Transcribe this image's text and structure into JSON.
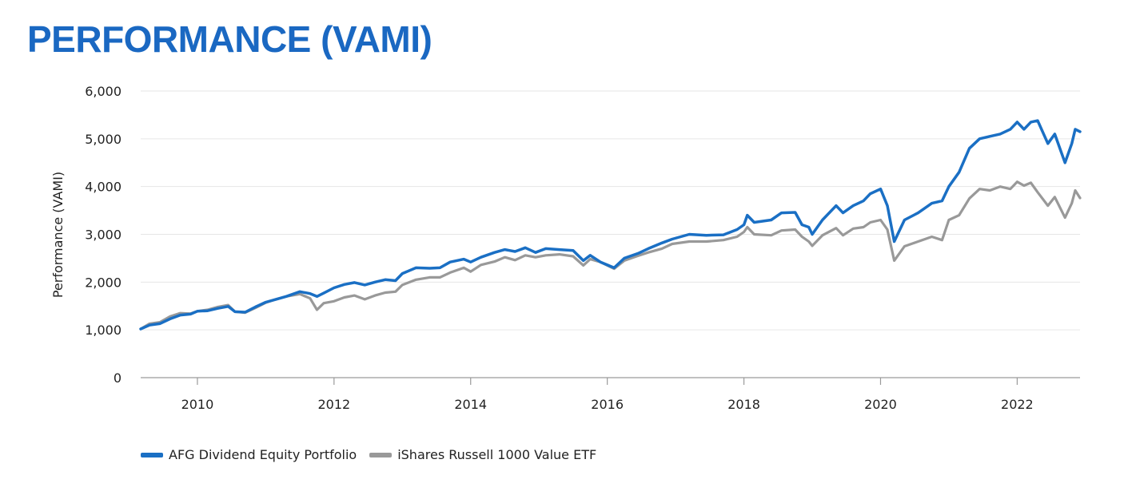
{
  "title": "PERFORMANCE (VAMI)",
  "colors": {
    "title": "#1a68c2",
    "grid": "#e6e6e6",
    "axis": "#9a9a9a"
  },
  "chart_data": {
    "type": "line",
    "ylabel": "Performance (VAMI)",
    "xlabel": "",
    "x_domain": [
      2009.17,
      2022.92
    ],
    "ylim": [
      0,
      6000
    ],
    "y_ticks": [
      "0",
      "1,000",
      "2,000",
      "3,000",
      "4,000",
      "5,000",
      "6,000"
    ],
    "x_ticks": [
      "2010",
      "2012",
      "2014",
      "2016",
      "2018",
      "2020",
      "2022"
    ],
    "grid": true,
    "legend_position": "bottom-left",
    "series": [
      {
        "name": "AFG Dividend Equity Portfolio",
        "color": "#1a6fc4",
        "points": [
          [
            2009.17,
            1020
          ],
          [
            2009.3,
            1100
          ],
          [
            2009.45,
            1130
          ],
          [
            2009.6,
            1230
          ],
          [
            2009.75,
            1310
          ],
          [
            2009.9,
            1330
          ],
          [
            2010.0,
            1390
          ],
          [
            2010.15,
            1400
          ],
          [
            2010.3,
            1450
          ],
          [
            2010.45,
            1490
          ],
          [
            2010.55,
            1380
          ],
          [
            2010.7,
            1370
          ],
          [
            2010.85,
            1480
          ],
          [
            2011.0,
            1580
          ],
          [
            2011.15,
            1640
          ],
          [
            2011.3,
            1700
          ],
          [
            2011.5,
            1800
          ],
          [
            2011.65,
            1760
          ],
          [
            2011.75,
            1700
          ],
          [
            2011.85,
            1770
          ],
          [
            2012.0,
            1880
          ],
          [
            2012.15,
            1950
          ],
          [
            2012.3,
            1990
          ],
          [
            2012.45,
            1940
          ],
          [
            2012.6,
            2000
          ],
          [
            2012.75,
            2050
          ],
          [
            2012.9,
            2030
          ],
          [
            2013.0,
            2180
          ],
          [
            2013.2,
            2300
          ],
          [
            2013.4,
            2290
          ],
          [
            2013.55,
            2300
          ],
          [
            2013.7,
            2420
          ],
          [
            2013.9,
            2480
          ],
          [
            2014.0,
            2420
          ],
          [
            2014.15,
            2520
          ],
          [
            2014.35,
            2620
          ],
          [
            2014.5,
            2680
          ],
          [
            2014.65,
            2640
          ],
          [
            2014.8,
            2720
          ],
          [
            2014.95,
            2620
          ],
          [
            2015.1,
            2700
          ],
          [
            2015.3,
            2680
          ],
          [
            2015.5,
            2660
          ],
          [
            2015.65,
            2450
          ],
          [
            2015.75,
            2560
          ],
          [
            2015.9,
            2420
          ],
          [
            2016.1,
            2300
          ],
          [
            2016.25,
            2500
          ],
          [
            2016.45,
            2600
          ],
          [
            2016.6,
            2700
          ],
          [
            2016.8,
            2820
          ],
          [
            2016.95,
            2900
          ],
          [
            2017.2,
            3000
          ],
          [
            2017.45,
            2980
          ],
          [
            2017.7,
            2990
          ],
          [
            2017.9,
            3100
          ],
          [
            2018.0,
            3200
          ],
          [
            2018.05,
            3400
          ],
          [
            2018.15,
            3250
          ],
          [
            2018.4,
            3300
          ],
          [
            2018.55,
            3450
          ],
          [
            2018.75,
            3460
          ],
          [
            2018.85,
            3200
          ],
          [
            2018.95,
            3150
          ],
          [
            2019.0,
            3000
          ],
          [
            2019.15,
            3300
          ],
          [
            2019.35,
            3600
          ],
          [
            2019.45,
            3450
          ],
          [
            2019.6,
            3600
          ],
          [
            2019.75,
            3700
          ],
          [
            2019.85,
            3850
          ],
          [
            2020.0,
            3950
          ],
          [
            2020.1,
            3600
          ],
          [
            2020.2,
            2850
          ],
          [
            2020.35,
            3300
          ],
          [
            2020.55,
            3450
          ],
          [
            2020.75,
            3650
          ],
          [
            2020.9,
            3700
          ],
          [
            2021.0,
            4000
          ],
          [
            2021.15,
            4300
          ],
          [
            2021.3,
            4800
          ],
          [
            2021.45,
            5000
          ],
          [
            2021.6,
            5050
          ],
          [
            2021.75,
            5100
          ],
          [
            2021.9,
            5200
          ],
          [
            2022.0,
            5350
          ],
          [
            2022.1,
            5200
          ],
          [
            2022.2,
            5350
          ],
          [
            2022.3,
            5380
          ],
          [
            2022.45,
            4900
          ],
          [
            2022.55,
            5100
          ],
          [
            2022.7,
            4500
          ],
          [
            2022.8,
            4900
          ],
          [
            2022.85,
            5200
          ],
          [
            2022.92,
            5150
          ]
        ]
      },
      {
        "name": "iShares Russell 1000 Value ETF",
        "color": "#999999",
        "points": [
          [
            2009.17,
            1020
          ],
          [
            2009.3,
            1130
          ],
          [
            2009.45,
            1160
          ],
          [
            2009.6,
            1280
          ],
          [
            2009.75,
            1350
          ],
          [
            2009.9,
            1340
          ],
          [
            2010.0,
            1390
          ],
          [
            2010.15,
            1420
          ],
          [
            2010.3,
            1480
          ],
          [
            2010.45,
            1520
          ],
          [
            2010.55,
            1380
          ],
          [
            2010.7,
            1360
          ],
          [
            2010.85,
            1460
          ],
          [
            2011.0,
            1570
          ],
          [
            2011.15,
            1640
          ],
          [
            2011.3,
            1700
          ],
          [
            2011.5,
            1750
          ],
          [
            2011.65,
            1660
          ],
          [
            2011.75,
            1420
          ],
          [
            2011.85,
            1560
          ],
          [
            2012.0,
            1600
          ],
          [
            2012.15,
            1680
          ],
          [
            2012.3,
            1720
          ],
          [
            2012.45,
            1640
          ],
          [
            2012.6,
            1720
          ],
          [
            2012.75,
            1780
          ],
          [
            2012.9,
            1800
          ],
          [
            2013.0,
            1940
          ],
          [
            2013.2,
            2050
          ],
          [
            2013.4,
            2100
          ],
          [
            2013.55,
            2100
          ],
          [
            2013.7,
            2200
          ],
          [
            2013.9,
            2300
          ],
          [
            2014.0,
            2220
          ],
          [
            2014.15,
            2360
          ],
          [
            2014.35,
            2430
          ],
          [
            2014.5,
            2520
          ],
          [
            2014.65,
            2460
          ],
          [
            2014.8,
            2560
          ],
          [
            2014.95,
            2520
          ],
          [
            2015.1,
            2560
          ],
          [
            2015.3,
            2580
          ],
          [
            2015.5,
            2540
          ],
          [
            2015.65,
            2350
          ],
          [
            2015.75,
            2480
          ],
          [
            2015.9,
            2420
          ],
          [
            2016.1,
            2280
          ],
          [
            2016.25,
            2450
          ],
          [
            2016.45,
            2550
          ],
          [
            2016.6,
            2620
          ],
          [
            2016.8,
            2700
          ],
          [
            2016.95,
            2800
          ],
          [
            2017.2,
            2850
          ],
          [
            2017.45,
            2850
          ],
          [
            2017.7,
            2880
          ],
          [
            2017.9,
            2950
          ],
          [
            2018.0,
            3050
          ],
          [
            2018.05,
            3150
          ],
          [
            2018.15,
            3000
          ],
          [
            2018.4,
            2980
          ],
          [
            2018.55,
            3080
          ],
          [
            2018.75,
            3100
          ],
          [
            2018.85,
            2950
          ],
          [
            2018.95,
            2850
          ],
          [
            2019.0,
            2760
          ],
          [
            2019.15,
            2980
          ],
          [
            2019.35,
            3130
          ],
          [
            2019.45,
            2980
          ],
          [
            2019.6,
            3120
          ],
          [
            2019.75,
            3150
          ],
          [
            2019.85,
            3250
          ],
          [
            2020.0,
            3300
          ],
          [
            2020.1,
            3100
          ],
          [
            2020.2,
            2450
          ],
          [
            2020.35,
            2750
          ],
          [
            2020.55,
            2850
          ],
          [
            2020.75,
            2950
          ],
          [
            2020.9,
            2880
          ],
          [
            2021.0,
            3300
          ],
          [
            2021.15,
            3400
          ],
          [
            2021.3,
            3750
          ],
          [
            2021.45,
            3950
          ],
          [
            2021.6,
            3920
          ],
          [
            2021.75,
            4000
          ],
          [
            2021.9,
            3950
          ],
          [
            2022.0,
            4100
          ],
          [
            2022.1,
            4020
          ],
          [
            2022.2,
            4080
          ],
          [
            2022.3,
            3880
          ],
          [
            2022.45,
            3600
          ],
          [
            2022.55,
            3780
          ],
          [
            2022.7,
            3350
          ],
          [
            2022.8,
            3650
          ],
          [
            2022.85,
            3920
          ],
          [
            2022.92,
            3760
          ]
        ]
      }
    ]
  }
}
